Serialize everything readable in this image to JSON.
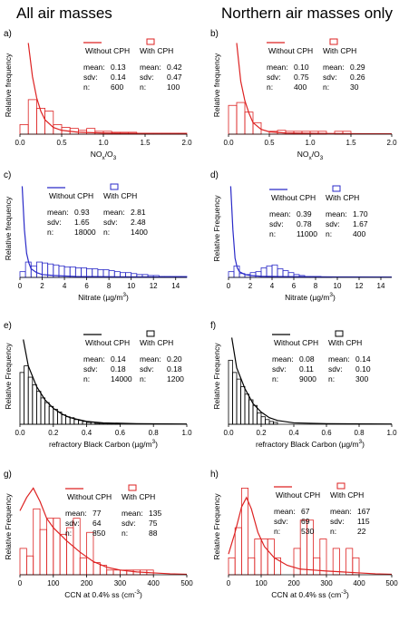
{
  "column_titles": [
    "All air masses",
    "Northern air masses only"
  ],
  "chart_data": [
    {
      "panel": "a)",
      "type": "bar",
      "color": "#dd2222",
      "ylabel": "Relative frequency",
      "xlabel": "NOx/O3",
      "xlabel_main": "NO",
      "xlabel_sub1": "x",
      "xlabel_mid": "/O",
      "xlabel_sub2": "3",
      "xlabel_sup": "",
      "xlim": [
        0,
        2.0
      ],
      "xticks": [
        0.0,
        0.5,
        1.0,
        1.5,
        2.0
      ],
      "tick_labels": [
        "0.0",
        "0.5",
        "1.0",
        "1.5",
        "2.0"
      ],
      "bin_width": 0.1,
      "bars": [
        0.1,
        0.36,
        0.27,
        0.24,
        0.1,
        0.07,
        0.06,
        0.04,
        0.06,
        0.03,
        0.03,
        0.02,
        0.02,
        0.02,
        0.01,
        0.01,
        0.01,
        0.01,
        0.01,
        0.01
      ],
      "curve": [
        [
          0.1,
          0.95
        ],
        [
          0.15,
          0.6
        ],
        [
          0.2,
          0.38
        ],
        [
          0.25,
          0.24
        ],
        [
          0.3,
          0.15
        ],
        [
          0.4,
          0.07
        ],
        [
          0.5,
          0.04
        ],
        [
          0.7,
          0.02
        ],
        [
          1.0,
          0.012
        ],
        [
          1.5,
          0.007
        ],
        [
          2.0,
          0.005
        ]
      ],
      "legend": {
        "without": "Without CPH",
        "with": "With CPH"
      },
      "stats": {
        "labels": [
          "mean:",
          "sdv:",
          "n:"
        ],
        "without": [
          "0.13",
          "0.14",
          "600"
        ],
        "with": [
          "0.42",
          "0.47",
          "100"
        ]
      }
    },
    {
      "panel": "b)",
      "type": "bar",
      "color": "#dd2222",
      "ylabel": "Relative frequency",
      "xlabel": "NOx/O3",
      "xlabel_main": "NO",
      "xlabel_sub1": "x",
      "xlabel_mid": "/O",
      "xlabel_sub2": "3",
      "xlabel_sup": "",
      "xlim": [
        0,
        2.0
      ],
      "xticks": [
        0.0,
        0.5,
        1.0,
        1.5,
        2.0
      ],
      "tick_labels": [
        "0.0",
        "0.5",
        "1.0",
        "1.5",
        "2.0"
      ],
      "bin_width": 0.1,
      "bars": [
        0.3,
        0.33,
        0.23,
        0.12,
        0,
        0.03,
        0.04,
        0.03,
        0.03,
        0.03,
        0.03,
        0.03,
        0,
        0.03,
        0.03,
        0,
        0,
        0,
        0,
        0
      ],
      "curve": [
        [
          0.1,
          0.95
        ],
        [
          0.15,
          0.55
        ],
        [
          0.2,
          0.35
        ],
        [
          0.25,
          0.22
        ],
        [
          0.3,
          0.12
        ],
        [
          0.4,
          0.05
        ],
        [
          0.5,
          0.025
        ],
        [
          0.7,
          0.012
        ],
        [
          1.0,
          0.008
        ],
        [
          1.5,
          0.005
        ],
        [
          2.0,
          0.004
        ]
      ],
      "legend": {
        "without": "Without CPH",
        "with": "With CPH"
      },
      "stats": {
        "labels": [
          "mean:",
          "sdv:",
          "n:"
        ],
        "without": [
          "0.10",
          "0.75",
          "400"
        ],
        "with": [
          "0.29",
          "0.26",
          "30"
        ]
      }
    },
    {
      "panel": "c)",
      "type": "bar",
      "color": "#2a2ac8",
      "ylabel": "Relative frequency",
      "xlabel": "Nitrate (µg/m3)",
      "xlabel_main": "Nitrate (µg/m",
      "xlabel_sub1": "",
      "xlabel_mid": "",
      "xlabel_sub2": "",
      "xlabel_sup": "3",
      "xlabel_end": ")",
      "xlim": [
        0,
        15
      ],
      "xticks": [
        0,
        2,
        4,
        6,
        8,
        10,
        12,
        14
      ],
      "tick_labels": [
        "0",
        "2",
        "4",
        "6",
        "8",
        "10",
        "12",
        "14"
      ],
      "bin_width": 0.5,
      "bars": [
        0.06,
        0.16,
        0.12,
        0.16,
        0.15,
        0.14,
        0.13,
        0.12,
        0.11,
        0.11,
        0.1,
        0.1,
        0.09,
        0.09,
        0.08,
        0.08,
        0.07,
        0.06,
        0.05,
        0.05,
        0.04,
        0.03,
        0.03,
        0.02,
        0.02,
        0.01,
        0.01,
        0.01,
        0.01,
        0.01
      ],
      "curve": [
        [
          0.2,
          0.95
        ],
        [
          0.4,
          0.5
        ],
        [
          0.6,
          0.25
        ],
        [
          0.8,
          0.15
        ],
        [
          1.0,
          0.09
        ],
        [
          1.5,
          0.05
        ],
        [
          2.0,
          0.03
        ],
        [
          3.0,
          0.02
        ],
        [
          5.0,
          0.01
        ],
        [
          8.0,
          0.007
        ],
        [
          12.0,
          0.005
        ],
        [
          15.0,
          0.004
        ]
      ],
      "legend": {
        "without": "Without CPH",
        "with": "With CPH"
      },
      "stats": {
        "labels": [
          "mean:",
          "sdv:",
          "n:"
        ],
        "without": [
          "0.93",
          "1.65",
          "18000"
        ],
        "with": [
          "2.81",
          "2.48",
          "1400"
        ]
      }
    },
    {
      "panel": "d)",
      "type": "bar",
      "color": "#2a2ac8",
      "ylabel": "Relative Frequency",
      "xlabel": "Nitrate (µg/m3)",
      "xlabel_main": "Nitrate (µg/m",
      "xlabel_sub1": "",
      "xlabel_mid": "",
      "xlabel_sub2": "",
      "xlabel_sup": "3",
      "xlabel_end": ")",
      "xlim": [
        0,
        15
      ],
      "xticks": [
        0,
        2,
        4,
        6,
        8,
        10,
        12,
        14
      ],
      "tick_labels": [
        "0",
        "2",
        "4",
        "6",
        "8",
        "10",
        "12",
        "14"
      ],
      "bin_width": 0.5,
      "bars": [
        0.06,
        0.12,
        0.04,
        0.03,
        0.05,
        0.06,
        0.1,
        0.12,
        0.13,
        0.09,
        0.07,
        0.05,
        0.03,
        0.02,
        0.01,
        0.01,
        0.01,
        0.005,
        0.005,
        0,
        0,
        0,
        0,
        0,
        0,
        0,
        0,
        0,
        0,
        0
      ],
      "curve": [
        [
          0.2,
          0.95
        ],
        [
          0.4,
          0.5
        ],
        [
          0.6,
          0.2
        ],
        [
          0.8,
          0.1
        ],
        [
          1.0,
          0.06
        ],
        [
          1.5,
          0.03
        ],
        [
          2.0,
          0.02
        ],
        [
          3.0,
          0.012
        ],
        [
          5.0,
          0.008
        ],
        [
          10.0,
          0.005
        ],
        [
          15.0,
          0.004
        ]
      ],
      "legend": {
        "without": "Without CPH",
        "with": "With CPH"
      },
      "stats": {
        "labels": [
          "mean:",
          "sdv:",
          "n:"
        ],
        "without": [
          "0.39",
          "0.78",
          "11000"
        ],
        "with": [
          "1.70",
          "1.67",
          "400"
        ]
      }
    },
    {
      "panel": "e)",
      "type": "bar",
      "color": "#000000",
      "ylabel": "Relative Frequency",
      "xlabel": "refractory Black Carbon (µg/m3)",
      "xlabel_main": "refractory Black Carbon (µg/m",
      "xlabel_sub1": "",
      "xlabel_mid": "",
      "xlabel_sub2": "",
      "xlabel_sup": "3",
      "xlabel_end": ")",
      "xlim": [
        0,
        1.0
      ],
      "xticks": [
        0.0,
        0.2,
        0.4,
        0.6,
        0.8,
        1.0
      ],
      "tick_labels": [
        "0.0",
        "0.2",
        "0.4",
        "0.6",
        "0.8",
        "1.0"
      ],
      "bin_width": 0.025,
      "bars": [
        0.55,
        0.62,
        0.5,
        0.42,
        0.35,
        0.28,
        0.23,
        0.19,
        0.16,
        0.13,
        0.1,
        0.08,
        0.07,
        0.05,
        0.04,
        0.03,
        0.02,
        0.02,
        0.01,
        0.01,
        0.01,
        0.005,
        0.005,
        0.005,
        0,
        0,
        0,
        0,
        0,
        0,
        0,
        0,
        0,
        0,
        0,
        0,
        0,
        0,
        0,
        0
      ],
      "curve": [
        [
          0.02,
          0.9
        ],
        [
          0.05,
          0.62
        ],
        [
          0.1,
          0.4
        ],
        [
          0.15,
          0.26
        ],
        [
          0.2,
          0.17
        ],
        [
          0.25,
          0.11
        ],
        [
          0.3,
          0.07
        ],
        [
          0.4,
          0.03
        ],
        [
          0.5,
          0.015
        ],
        [
          0.7,
          0.006
        ],
        [
          1.0,
          0.003
        ]
      ],
      "legend": {
        "without": "Without CPH",
        "with": "With CPH"
      },
      "stats": {
        "labels": [
          "mean:",
          "sdv:",
          "n:"
        ],
        "without": [
          "0.14",
          "0.18",
          "14000"
        ],
        "with": [
          "0.20",
          "0.18",
          "1200"
        ]
      }
    },
    {
      "panel": "f)",
      "type": "bar",
      "color": "#000000",
      "ylabel": "Relative Frequency",
      "xlabel": "refractory Black Carbon (µg/m3)",
      "xlabel_main": "refractory Black Carbon (µg/m",
      "xlabel_sub1": "",
      "xlabel_mid": "",
      "xlabel_sub2": "",
      "xlabel_sup": "3",
      "xlabel_end": ")",
      "xlim": [
        0,
        1.0
      ],
      "xticks": [
        0.0,
        0.2,
        0.4,
        0.6,
        0.8,
        1.0
      ],
      "tick_labels": [
        "0.0",
        "0.2",
        "0.4",
        "0.6",
        "0.8",
        "1.0"
      ],
      "bin_width": 0.025,
      "bars": [
        0.68,
        0.55,
        0.48,
        0.4,
        0.32,
        0.26,
        0.2,
        0.12,
        0.08,
        0.05,
        0.03,
        0.02,
        0,
        0,
        0,
        0,
        0,
        0,
        0,
        0,
        0,
        0,
        0,
        0,
        0,
        0,
        0,
        0,
        0,
        0,
        0,
        0,
        0,
        0,
        0,
        0,
        0,
        0,
        0,
        0
      ],
      "curve": [
        [
          0.02,
          0.92
        ],
        [
          0.05,
          0.6
        ],
        [
          0.1,
          0.38
        ],
        [
          0.15,
          0.22
        ],
        [
          0.2,
          0.13
        ],
        [
          0.25,
          0.07
        ],
        [
          0.3,
          0.04
        ],
        [
          0.4,
          0.015
        ],
        [
          0.6,
          0.006
        ],
        [
          1.0,
          0.003
        ]
      ],
      "legend": {
        "without": "Without CPH",
        "with": "With CPH"
      },
      "stats": {
        "labels": [
          "mean:",
          "sdv:",
          "n:"
        ],
        "without": [
          "0.08",
          "0.11",
          "9000"
        ],
        "with": [
          "0.14",
          "0.10",
          "300"
        ]
      }
    },
    {
      "panel": "g)",
      "type": "bar",
      "color": "#dd2222",
      "ylabel": "Relative Frequency",
      "xlabel": "CCN at 0.4% ss (cm-3)",
      "xlabel_main": "CCN at 0.4% ss (cm",
      "xlabel_sub1": "",
      "xlabel_mid": "",
      "xlabel_sub2": "",
      "xlabel_sup": "-3",
      "xlabel_end": ")",
      "xlim": [
        0,
        500
      ],
      "xticks": [
        0,
        100,
        200,
        300,
        400,
        500
      ],
      "tick_labels": [
        "0",
        "100",
        "200",
        "300",
        "400",
        "500"
      ],
      "bin_width": 20,
      "bars": [
        0.28,
        0.2,
        0.7,
        0.48,
        0.6,
        0.6,
        0.43,
        0.5,
        0.6,
        0.18,
        0.45,
        0.13,
        0.1,
        0.05,
        0.05,
        0.05,
        0.05,
        0.05,
        0.05,
        0.05,
        0,
        0,
        0,
        0,
        0
      ],
      "curve": [
        [
          0,
          0.68
        ],
        [
          20,
          0.82
        ],
        [
          40,
          0.92
        ],
        [
          60,
          0.78
        ],
        [
          80,
          0.6
        ],
        [
          100,
          0.5
        ],
        [
          140,
          0.36
        ],
        [
          180,
          0.24
        ],
        [
          220,
          0.14
        ],
        [
          260,
          0.08
        ],
        [
          300,
          0.05
        ],
        [
          350,
          0.03
        ],
        [
          400,
          0.02
        ],
        [
          450,
          0.01
        ],
        [
          500,
          0.005
        ]
      ],
      "legend": {
        "without": "Without CPH",
        "with": "With CPH"
      },
      "stats": {
        "labels": [
          "mean:",
          "sdv:",
          "n:"
        ],
        "without": [
          "77",
          "64",
          "850"
        ],
        "with": [
          "135",
          "75",
          "88"
        ]
      }
    },
    {
      "panel": "h)",
      "type": "bar",
      "color": "#dd2222",
      "ylabel": "Relative Frequency",
      "xlabel": "CCN at 0.4% ss (cm-3)",
      "xlabel_main": "CCN at 0.4% ss (cm",
      "xlabel_sub1": "",
      "xlabel_mid": "",
      "xlabel_sub2": "",
      "xlabel_sup": "-3",
      "xlabel_end": ")",
      "xlim": [
        0,
        500
      ],
      "xticks": [
        0,
        100,
        200,
        300,
        400,
        500
      ],
      "tick_labels": [
        "0",
        "100",
        "200",
        "300",
        "400",
        "500"
      ],
      "bin_width": 20,
      "bars": [
        0.18,
        0.5,
        0.92,
        0.18,
        0.38,
        0.38,
        0.38,
        0.18,
        0,
        0,
        0.28,
        0.58,
        0.58,
        0.18,
        0.38,
        0,
        0.28,
        0,
        0.28,
        0.18,
        0,
        0,
        0,
        0,
        0
      ],
      "curve": [
        [
          0,
          0.22
        ],
        [
          20,
          0.45
        ],
        [
          40,
          0.72
        ],
        [
          55,
          0.82
        ],
        [
          70,
          0.7
        ],
        [
          90,
          0.45
        ],
        [
          110,
          0.3
        ],
        [
          140,
          0.18
        ],
        [
          180,
          0.1
        ],
        [
          220,
          0.06
        ],
        [
          260,
          0.05
        ],
        [
          300,
          0.04
        ],
        [
          350,
          0.03
        ],
        [
          400,
          0.02
        ],
        [
          450,
          0.01
        ],
        [
          500,
          0.005
        ]
      ],
      "legend": {
        "without": "Without CPH",
        "with": "With CPH"
      },
      "stats": {
        "labels": [
          "mean:",
          "sdv:",
          "n:"
        ],
        "without": [
          "67",
          "69",
          "530"
        ],
        "with": [
          "167",
          "115",
          "22"
        ]
      }
    }
  ]
}
